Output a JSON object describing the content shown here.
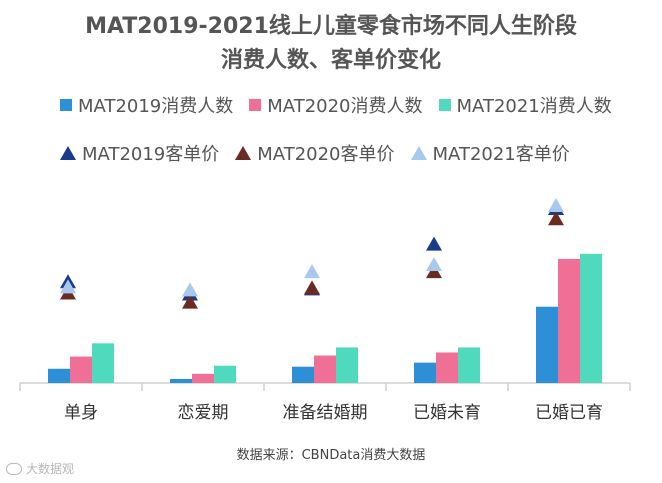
{
  "title_line1": "MAT2019-2021线上儿童零食市场不同人生阶段",
  "title_line2": "消费人数、客单价变化",
  "source": "数据来源：CBNData消费大数据",
  "watermark": "大数据观",
  "colors": {
    "bar2019": "#2d8fd5",
    "bar2020": "#f06f97",
    "bar2021": "#4fd9bd",
    "tri2019": "#1a3a8c",
    "tri2020": "#6b2b22",
    "tri2021": "#a8c8ee"
  },
  "chart_data": {
    "type": "bar",
    "categories": [
      "单身",
      "恋爱期",
      "准备结婚期",
      "已婚未育",
      "已婚已育"
    ],
    "series": [
      {
        "name": "MAT2019消费人数",
        "kind": "bar",
        "color_key": "bar2019",
        "values": [
          14,
          4,
          16,
          20,
          75
        ]
      },
      {
        "name": "MAT2020消费人数",
        "kind": "bar",
        "color_key": "bar2020",
        "values": [
          26,
          9,
          27,
          30,
          122
        ]
      },
      {
        "name": "MAT2021消费人数",
        "kind": "bar",
        "color_key": "bar2021",
        "values": [
          39,
          17,
          35,
          35,
          127
        ]
      },
      {
        "name": "MAT2019客单价",
        "kind": "triangle",
        "color_key": "tri2019",
        "values": [
          100,
          88,
          93,
          137,
          172
        ]
      },
      {
        "name": "MAT2020客单价",
        "kind": "triangle",
        "color_key": "tri2020",
        "values": [
          89,
          80,
          94,
          110,
          162
        ]
      },
      {
        "name": "MAT2021客单价",
        "kind": "triangle",
        "color_key": "tri2021",
        "values": [
          95,
          92,
          110,
          117,
          175
        ]
      }
    ],
    "ylim": [
      0,
      175
    ],
    "xlabel": "",
    "ylabel": "",
    "grid": false,
    "legend": "top"
  }
}
